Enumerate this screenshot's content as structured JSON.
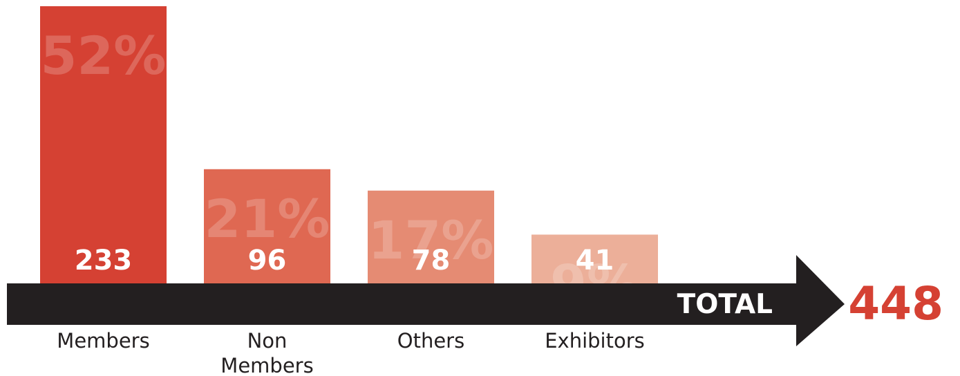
{
  "chart_data": {
    "type": "bar",
    "categories": [
      "Members",
      "Non Members",
      "Others",
      "Exhibitors"
    ],
    "category_lines": [
      [
        "Members"
      ],
      [
        "Non",
        "Members"
      ],
      [
        "Others"
      ],
      [
        "Exhibitors"
      ]
    ],
    "values": [
      233,
      96,
      78,
      41
    ],
    "percentages": [
      "52%",
      "21%",
      "17%",
      "9%"
    ],
    "ylim": [
      0,
      233
    ],
    "bar_colors": [
      "#d54133",
      "#df6852",
      "#e58b73",
      "#ecaf99"
    ],
    "total_label": "TOTAL",
    "total_value": "448",
    "arrow_color": "#231f20",
    "total_value_color": "#d54133",
    "grid": false,
    "legend": "none"
  }
}
